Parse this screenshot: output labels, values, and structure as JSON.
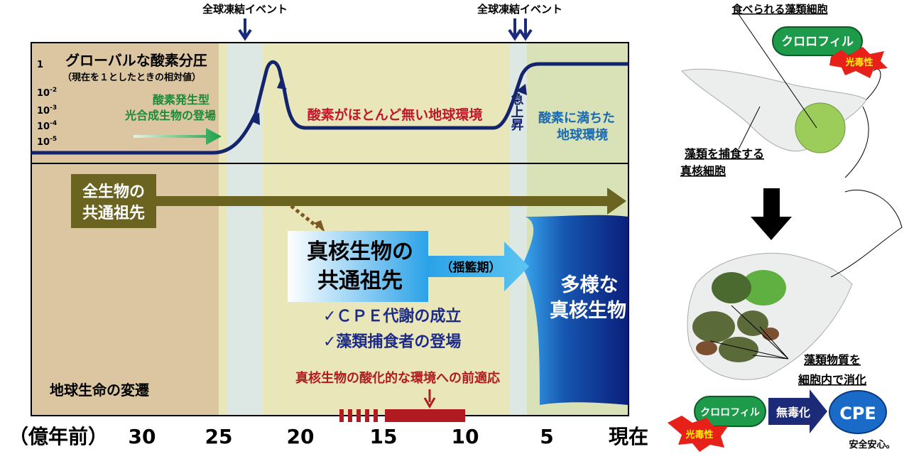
{
  "top_labels": {
    "snowball_1": "全球凍結イベント",
    "snowball_2": "全球凍結イベント"
  },
  "oxygen_panel": {
    "title": "グローバルな酸素分圧",
    "subtitle": "（現在を１としたときの相対値）",
    "y_ticks": [
      {
        "base": "1"
      },
      {
        "base": "10",
        "exp": "-2"
      },
      {
        "base": "10",
        "exp": "-3"
      },
      {
        "base": "10",
        "exp": "-4"
      },
      {
        "base": "10",
        "exp": "-5"
      }
    ],
    "photosynthesis": [
      "酸素発生型",
      "光合成生物の登場"
    ],
    "low_oxygen": "酸素がほとんど無い地球環境",
    "rise": "急上昇",
    "rich": [
      "酸素に満ちた",
      "地球環境"
    ]
  },
  "life_panel": {
    "luca": [
      "全生物の",
      "共通祖先"
    ],
    "leca": [
      "真核生物の",
      "共通祖先"
    ],
    "cradle": "（揺籃期）",
    "diverse": [
      "多様な",
      "真核生物"
    ],
    "features": [
      "✓ＣＰＥ代謝の成立",
      "✓藻類捕食者の登場"
    ],
    "preadapt": "真核生物の酸化的な環境への前適応",
    "label": "地球生命の変遷"
  },
  "time_axis": {
    "unit": "（億年前）",
    "ticks": [
      "30",
      "25",
      "20",
      "15",
      "10",
      "5",
      "現在"
    ]
  },
  "right_panel": {
    "algae": "食べられる藻類細胞",
    "chlorophyll": "クロロフィル",
    "phototoxic": "光毒性",
    "predator": [
      "藻類を捕食する",
      "真核細胞"
    ],
    "digest": [
      "藻類物質を",
      "細胞内で消化"
    ],
    "chlorophyll_2": "クロロフィル",
    "phototoxic_2": "光毒性",
    "detox": "無毒化",
    "cpe": "CPE",
    "safe": "安全安心。"
  }
}
